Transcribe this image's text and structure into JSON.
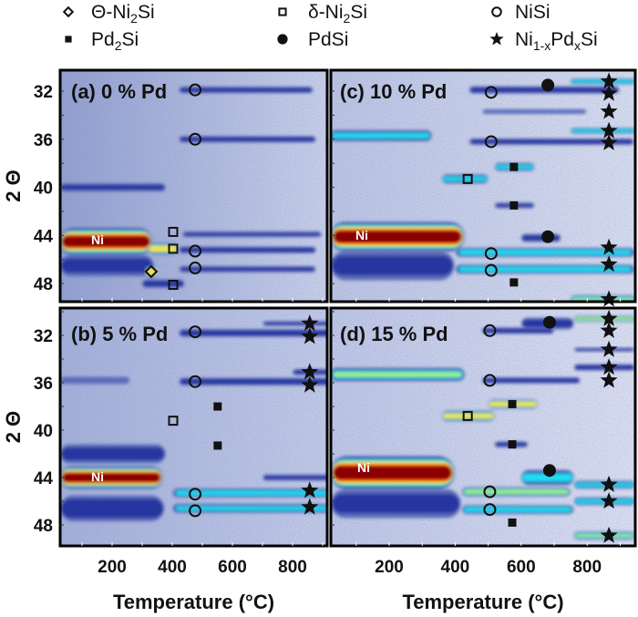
{
  "legend": [
    {
      "marker": "diamond-open",
      "label": [
        "Θ-Ni",
        "2",
        "Si"
      ]
    },
    {
      "marker": "square-open",
      "label": [
        "δ-Ni",
        "2",
        "Si"
      ]
    },
    {
      "marker": "circle-open",
      "label": [
        "NiSi"
      ]
    },
    {
      "marker": "square-filled",
      "label": [
        "Pd",
        "2",
        "Si"
      ]
    },
    {
      "marker": "circle-filled",
      "label": [
        "PdSi"
      ]
    },
    {
      "marker": "star",
      "label": [
        "Ni",
        "1-x",
        "Pd",
        "x",
        "Si"
      ]
    }
  ],
  "colormap": {
    "low": "#5a6ab8",
    "dark_blue": "#2636a0",
    "cyan": "#22dcf2",
    "green": "#a8f060",
    "yellow": "#ffe020",
    "red": "#ff2a10",
    "dark_red": "#8a0000"
  },
  "chart_data": [
    {
      "id": "a",
      "type": "heatmap",
      "title": "(a) 0 % Pd",
      "xlabel": "",
      "ylabel": "2 Θ",
      "xlim": [
        25,
        935
      ],
      "ylim": [
        30.2,
        49.4
      ],
      "yticks": [
        "32",
        "36",
        "40",
        "44",
        "48"
      ],
      "xticks": [],
      "annotation": "Ni",
      "background": [
        "#95a2d0",
        "#cdd4ea"
      ],
      "bands": [
        {
          "t0": 25,
          "t1": 380,
          "tt": 40.0,
          "w": 0.4,
          "i": 0.3
        },
        {
          "t0": 25,
          "t1": 340,
          "tt": 46.5,
          "w": 1.1,
          "i": 0.3
        },
        {
          "t0": 25,
          "t1": 335,
          "tt": 44.5,
          "w": 1.2,
          "i": 1.0
        },
        {
          "t0": 320,
          "t1": 420,
          "tt": 45.1,
          "w": 0.5,
          "i": 0.78
        },
        {
          "t0": 310,
          "t1": 350,
          "tt": 47.0,
          "w": 0.55,
          "i": 0.76
        },
        {
          "t0": 300,
          "t1": 440,
          "tt": 48.0,
          "w": 0.4,
          "i": 0.35
        },
        {
          "t0": 420,
          "t1": 870,
          "tt": 31.9,
          "w": 0.3,
          "i": 0.35
        },
        {
          "t0": 420,
          "t1": 880,
          "tt": 36.0,
          "w": 0.3,
          "i": 0.35
        },
        {
          "t0": 430,
          "t1": 900,
          "tt": 43.9,
          "w": 0.3,
          "i": 0.25
        },
        {
          "t0": 420,
          "t1": 880,
          "tt": 45.2,
          "w": 0.3,
          "i": 0.4
        },
        {
          "t0": 420,
          "t1": 880,
          "tt": 46.8,
          "w": 0.3,
          "i": 0.3
        }
      ],
      "markers": [
        {
          "type": "circle-open",
          "T": 476,
          "tt": 31.9
        },
        {
          "type": "circle-open",
          "T": 476,
          "tt": 36.0
        },
        {
          "type": "circle-open",
          "T": 476,
          "tt": 45.3
        },
        {
          "type": "circle-open",
          "T": 476,
          "tt": 46.7
        },
        {
          "type": "square-open",
          "T": 403,
          "tt": 43.7
        },
        {
          "type": "square-open",
          "T": 403,
          "tt": 45.1
        },
        {
          "type": "square-open",
          "T": 403,
          "tt": 48.1
        },
        {
          "type": "diamond-open",
          "T": 330,
          "tt": 47.0
        }
      ]
    },
    {
      "id": "b",
      "type": "heatmap",
      "title": "(b) 5 % Pd",
      "xlabel": "Temperature (°C)",
      "ylabel": "2 Θ",
      "xlim": [
        25,
        935
      ],
      "ylim": [
        29.7,
        49.8
      ],
      "yticks": [
        "32",
        "36",
        "40",
        "44",
        "48"
      ],
      "xticks": [
        "200",
        "400",
        "600",
        "800"
      ],
      "annotation": "Ni",
      "background": [
        "#a8b3da",
        "#c6cee8"
      ],
      "bands": [
        {
          "t0": 25,
          "t1": 260,
          "tt": 35.8,
          "w": 0.4,
          "i": 0.2
        },
        {
          "t0": 25,
          "t1": 380,
          "tt": 42.0,
          "w": 1.0,
          "i": 0.3
        },
        {
          "t0": 25,
          "t1": 375,
          "tt": 46.6,
          "w": 1.3,
          "i": 0.35
        },
        {
          "t0": 25,
          "t1": 370,
          "tt": 44.0,
          "w": 1.0,
          "i": 1.0
        },
        {
          "t0": 700,
          "t1": 935,
          "tt": 31.0,
          "w": 0.25,
          "i": 0.25
        },
        {
          "t0": 420,
          "t1": 935,
          "tt": 31.8,
          "w": 0.35,
          "i": 0.42
        },
        {
          "t0": 800,
          "t1": 935,
          "tt": 35.1,
          "w": 0.3,
          "i": 0.3
        },
        {
          "t0": 420,
          "t1": 935,
          "tt": 35.9,
          "w": 0.35,
          "i": 0.4
        },
        {
          "t0": 700,
          "t1": 935,
          "tt": 44.0,
          "w": 0.3,
          "i": 0.3
        },
        {
          "t0": 400,
          "t1": 935,
          "tt": 45.3,
          "w": 0.4,
          "i": 0.56
        },
        {
          "t0": 400,
          "t1": 935,
          "tt": 46.6,
          "w": 0.4,
          "i": 0.52
        }
      ],
      "markers": [
        {
          "type": "circle-open",
          "T": 476,
          "tt": 31.7
        },
        {
          "type": "circle-open",
          "T": 476,
          "tt": 35.9
        },
        {
          "type": "circle-open",
          "T": 476,
          "tt": 45.4
        },
        {
          "type": "circle-open",
          "T": 476,
          "tt": 46.8
        },
        {
          "type": "square-open",
          "T": 403,
          "tt": 39.2
        },
        {
          "type": "square-filled",
          "T": 551,
          "tt": 38.0
        },
        {
          "type": "square-filled",
          "T": 551,
          "tt": 41.3
        },
        {
          "type": "star",
          "T": 857,
          "tt": 31.0
        },
        {
          "type": "star",
          "T": 857,
          "tt": 32.1
        },
        {
          "type": "star",
          "T": 857,
          "tt": 35.1
        },
        {
          "type": "star",
          "T": 857,
          "tt": 36.2
        },
        {
          "type": "star",
          "T": 857,
          "tt": 45.1
        },
        {
          "type": "star",
          "T": 857,
          "tt": 46.5
        }
      ]
    },
    {
      "id": "c",
      "type": "heatmap",
      "title": "(c) 10 % Pd",
      "xlabel": "",
      "ylabel": "",
      "xlim": [
        20,
        945
      ],
      "ylim": [
        30.2,
        49.4
      ],
      "yticks": [],
      "xticks": [],
      "annotation": "Ni",
      "background": [
        "#bfc8e4",
        "#dde2f0"
      ],
      "bands": [
        {
          "t0": 20,
          "t1": 400,
          "tt": 46.5,
          "w": 1.5,
          "i": 0.3
        },
        {
          "t0": 20,
          "t1": 330,
          "tt": 35.7,
          "w": 0.5,
          "i": 0.52
        },
        {
          "t0": 20,
          "t1": 430,
          "tt": 44.1,
          "w": 1.3,
          "i": 1.0
        },
        {
          "t0": 440,
          "t1": 900,
          "tt": 31.9,
          "w": 0.35,
          "i": 0.35
        },
        {
          "t0": 750,
          "t1": 945,
          "tt": 31.2,
          "w": 0.25,
          "i": 0.56
        },
        {
          "t0": 480,
          "t1": 800,
          "tt": 33.7,
          "w": 0.25,
          "i": 0.2
        },
        {
          "t0": 750,
          "t1": 945,
          "tt": 35.3,
          "w": 0.25,
          "i": 0.56
        },
        {
          "t0": 440,
          "t1": 945,
          "tt": 36.2,
          "w": 0.3,
          "i": 0.35
        },
        {
          "t0": 360,
          "t1": 500,
          "tt": 39.3,
          "w": 0.4,
          "i": 0.52
        },
        {
          "t0": 520,
          "t1": 640,
          "tt": 38.3,
          "w": 0.35,
          "i": 0.52
        },
        {
          "t0": 520,
          "t1": 640,
          "tt": 41.5,
          "w": 0.3,
          "i": 0.25
        },
        {
          "t0": 600,
          "t1": 720,
          "tt": 44.2,
          "w": 0.4,
          "i": 0.3
        },
        {
          "t0": 400,
          "t1": 945,
          "tt": 45.4,
          "w": 0.4,
          "i": 0.56
        },
        {
          "t0": 400,
          "t1": 945,
          "tt": 46.8,
          "w": 0.4,
          "i": 0.56
        },
        {
          "t0": 750,
          "t1": 945,
          "tt": 49.3,
          "w": 0.35,
          "i": 0.6
        }
      ],
      "markers": [
        {
          "type": "circle-open",
          "T": 509,
          "tt": 32.1
        },
        {
          "type": "circle-open",
          "T": 509,
          "tt": 36.2
        },
        {
          "type": "circle-open",
          "T": 509,
          "tt": 45.5
        },
        {
          "type": "circle-open",
          "T": 509,
          "tt": 46.9
        },
        {
          "type": "circle-filled",
          "T": 681,
          "tt": 31.5
        },
        {
          "type": "circle-filled",
          "T": 681,
          "tt": 44.1
        },
        {
          "type": "square-open",
          "T": 438,
          "tt": 39.3
        },
        {
          "type": "square-filled",
          "T": 578,
          "tt": 38.3
        },
        {
          "type": "square-filled",
          "T": 578,
          "tt": 41.5
        },
        {
          "type": "square-filled",
          "T": 578,
          "tt": 47.9
        },
        {
          "type": "star",
          "T": 866,
          "tt": 31.2
        },
        {
          "type": "star",
          "T": 866,
          "tt": 32.2
        },
        {
          "type": "star",
          "T": 866,
          "tt": 33.7
        },
        {
          "type": "star",
          "T": 866,
          "tt": 35.3
        },
        {
          "type": "star",
          "T": 866,
          "tt": 36.3
        },
        {
          "type": "star",
          "T": 866,
          "tt": 45.0
        },
        {
          "type": "star",
          "T": 866,
          "tt": 46.4
        },
        {
          "type": "star",
          "T": 866,
          "tt": 49.3
        }
      ]
    },
    {
      "id": "d",
      "type": "heatmap",
      "title": "(d) 15 % Pd",
      "xlabel": "Temperature (°C)",
      "ylabel": "",
      "xlim": [
        20,
        945
      ],
      "ylim": [
        29.7,
        49.8
      ],
      "yticks": [],
      "xticks": [
        "200",
        "400",
        "600",
        "800"
      ],
      "annotation": "Ni",
      "background": [
        "#c2cae6",
        "#e0e4f2"
      ],
      "bands": [
        {
          "t0": 20,
          "t1": 420,
          "tt": 46.2,
          "w": 1.5,
          "i": 0.3
        },
        {
          "t0": 20,
          "t1": 430,
          "tt": 35.3,
          "w": 0.6,
          "i": 0.6
        },
        {
          "t0": 20,
          "t1": 400,
          "tt": 43.6,
          "w": 1.5,
          "i": 1.0
        },
        {
          "t0": 600,
          "t1": 760,
          "tt": 31.0,
          "w": 0.6,
          "i": 0.3
        },
        {
          "t0": 760,
          "t1": 945,
          "tt": 30.6,
          "w": 0.25,
          "i": 0.66
        },
        {
          "t0": 480,
          "t1": 700,
          "tt": 31.6,
          "w": 0.3,
          "i": 0.35
        },
        {
          "t0": 760,
          "t1": 945,
          "tt": 33.2,
          "w": 0.2,
          "i": 0.25
        },
        {
          "t0": 760,
          "t1": 945,
          "tt": 34.7,
          "w": 0.3,
          "i": 0.38
        },
        {
          "t0": 480,
          "t1": 780,
          "tt": 35.8,
          "w": 0.3,
          "i": 0.35
        },
        {
          "t0": 360,
          "t1": 520,
          "tt": 38.8,
          "w": 0.45,
          "i": 0.73
        },
        {
          "t0": 500,
          "t1": 650,
          "tt": 37.8,
          "w": 0.4,
          "i": 0.76
        },
        {
          "t0": 520,
          "t1": 620,
          "tt": 41.2,
          "w": 0.3,
          "i": 0.3
        },
        {
          "t0": 600,
          "t1": 760,
          "tt": 44.0,
          "w": 0.7,
          "i": 0.55
        },
        {
          "t0": 420,
          "t1": 750,
          "tt": 45.2,
          "w": 0.4,
          "i": 0.66
        },
        {
          "t0": 420,
          "t1": 760,
          "tt": 46.7,
          "w": 0.4,
          "i": 0.56
        },
        {
          "t0": 760,
          "t1": 945,
          "tt": 44.6,
          "w": 0.35,
          "i": 0.52
        },
        {
          "t0": 760,
          "t1": 945,
          "tt": 46.0,
          "w": 0.35,
          "i": 0.52
        },
        {
          "t0": 760,
          "t1": 945,
          "tt": 48.9,
          "w": 0.35,
          "i": 0.6
        }
      ],
      "markers": [
        {
          "type": "circle-open",
          "T": 505,
          "tt": 31.6
        },
        {
          "type": "circle-open",
          "T": 505,
          "tt": 35.8
        },
        {
          "type": "circle-open",
          "T": 505,
          "tt": 45.2
        },
        {
          "type": "circle-open",
          "T": 505,
          "tt": 46.7
        },
        {
          "type": "circle-filled",
          "T": 686,
          "tt": 30.9
        },
        {
          "type": "circle-filled",
          "T": 686,
          "tt": 43.4
        },
        {
          "type": "square-open",
          "T": 438,
          "tt": 38.8
        },
        {
          "type": "square-filled",
          "T": 573,
          "tt": 37.8
        },
        {
          "type": "square-filled",
          "T": 573,
          "tt": 41.2
        },
        {
          "type": "square-filled",
          "T": 573,
          "tt": 47.8
        },
        {
          "type": "star",
          "T": 866,
          "tt": 30.6
        },
        {
          "type": "star",
          "T": 866,
          "tt": 31.6
        },
        {
          "type": "star",
          "T": 866,
          "tt": 33.2
        },
        {
          "type": "star",
          "T": 866,
          "tt": 34.7
        },
        {
          "type": "star",
          "T": 866,
          "tt": 35.8
        },
        {
          "type": "star",
          "T": 866,
          "tt": 44.6
        },
        {
          "type": "star",
          "T": 866,
          "tt": 46.0
        },
        {
          "type": "star",
          "T": 866,
          "tt": 48.9
        }
      ]
    }
  ]
}
